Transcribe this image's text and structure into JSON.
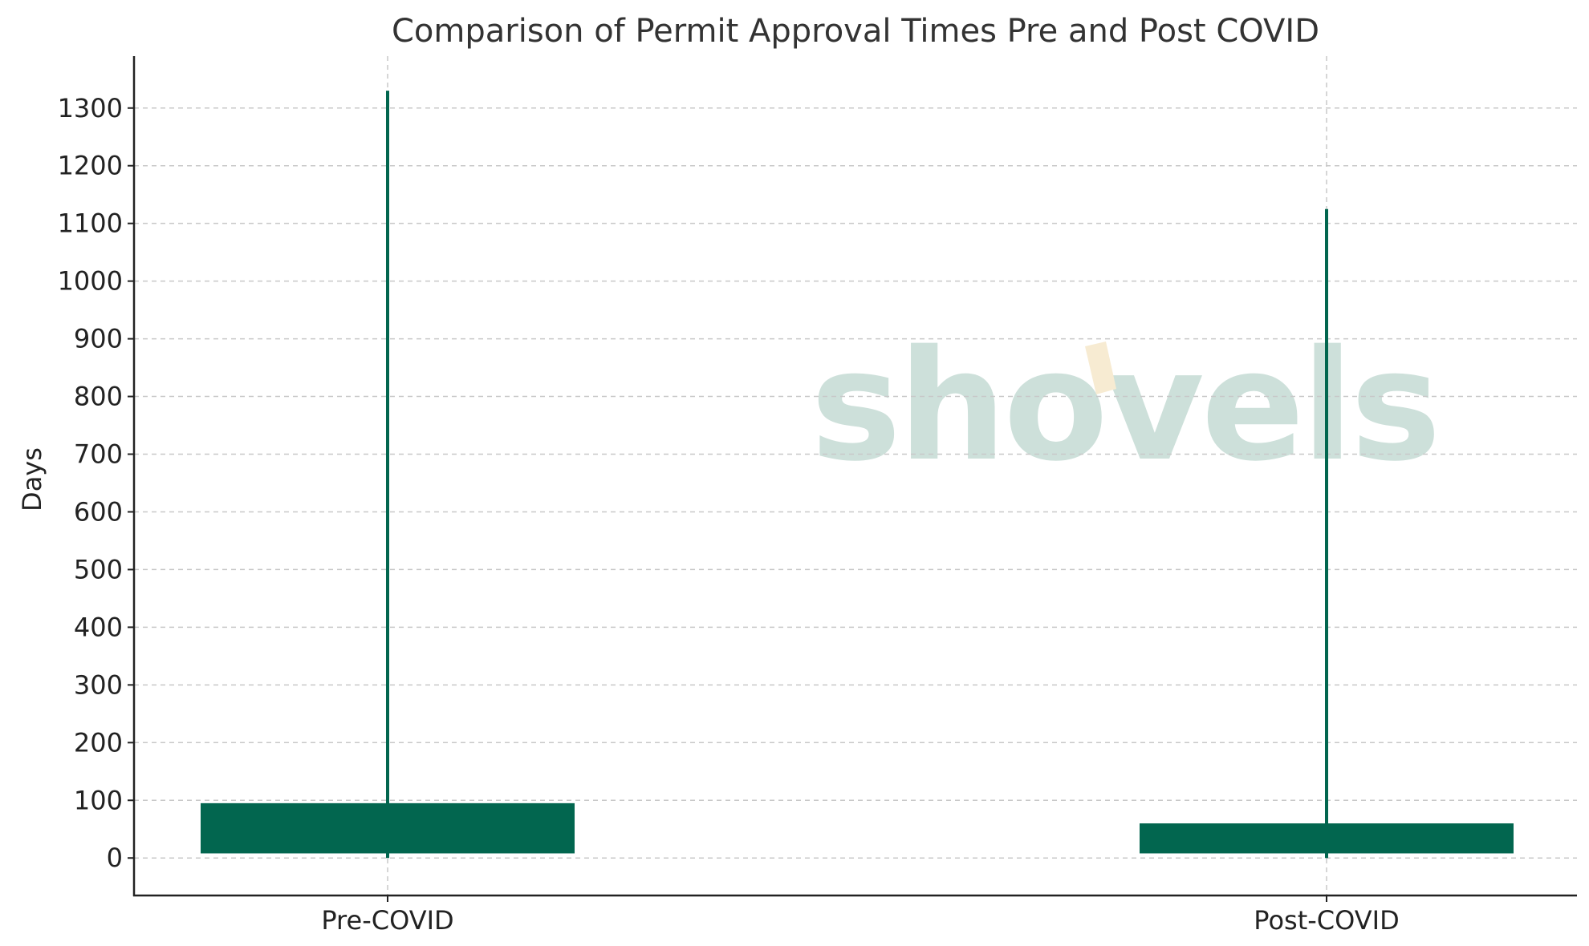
{
  "chart_data": {
    "type": "bar",
    "title": "Comparison of Permit Approval Times Pre and Post COVID",
    "xlabel": "",
    "ylabel": "Days",
    "categories": [
      "Pre-COVID",
      "Post-COVID"
    ],
    "bars": [
      {
        "category": "Pre-COVID",
        "low": 8,
        "high": 95
      },
      {
        "category": "Post-COVID",
        "low": 8,
        "high": 60
      }
    ],
    "error_bars": [
      {
        "category": "Pre-COVID",
        "low": 0,
        "high": 1330
      },
      {
        "category": "Post-COVID",
        "low": 0,
        "high": 1125
      }
    ],
    "ylim": [
      -65,
      1390
    ],
    "yticks": [
      0,
      100,
      200,
      300,
      400,
      500,
      600,
      700,
      800,
      900,
      1000,
      1100,
      1200,
      1300
    ],
    "grid": true,
    "legend": "none",
    "colors": {
      "bar": "#02664f",
      "whisker": "#02664f",
      "grid": "#c8c8c8",
      "axis": "#222222"
    }
  },
  "watermark": {
    "text": "shovels",
    "text_color": "#cde0da",
    "accent_color": "#f7ebd2"
  }
}
